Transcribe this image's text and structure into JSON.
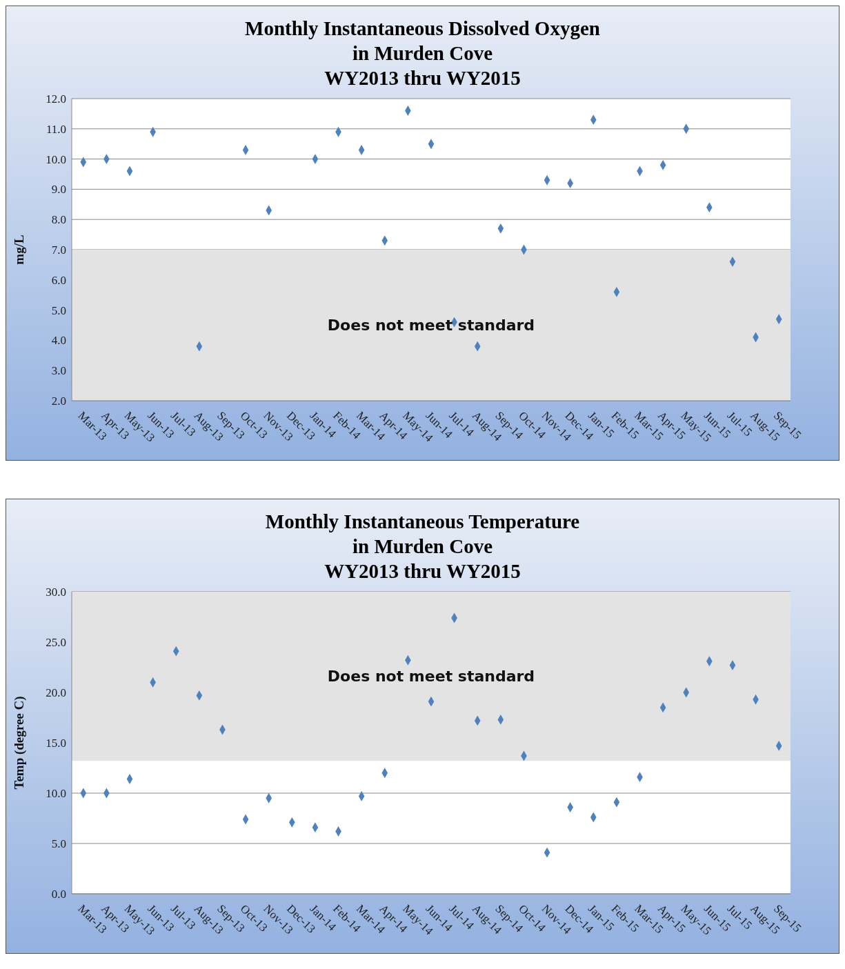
{
  "chart_data": [
    {
      "type": "scatter",
      "title": "Monthly Instantaneous Dissolved Oxygen\nin Murden Cove\nWY2013 thru WY2015",
      "ylabel": "mg/L",
      "categories": [
        "Mar-13",
        "Apr-13",
        "May-13",
        "Jun-13",
        "Jul-13",
        "Aug-13",
        "Sep-13",
        "Oct-13",
        "Nov-13",
        "Dec-13",
        "Jan-14",
        "Feb-14",
        "Mar-14",
        "Apr-14",
        "May-14",
        "Jun-14",
        "Jul-14",
        "Aug-14",
        "Sep-14",
        "Oct-14",
        "Nov-14",
        "Dec-14",
        "Jan-15",
        "Feb-15",
        "Mar-15",
        "Apr-15",
        "May-15",
        "Jun-15",
        "Jul-15",
        "Aug-15",
        "Sep-15"
      ],
      "series": [
        {
          "color": "#4f81bd",
          "values": [
            9.9,
            10.0,
            9.6,
            10.9,
            null,
            3.8,
            null,
            10.3,
            8.3,
            null,
            10.0,
            10.9,
            10.3,
            7.3,
            11.6,
            10.5,
            4.6,
            3.8,
            7.7,
            7.0,
            9.3,
            9.2,
            11.3,
            5.6,
            9.6,
            9.8,
            11.0,
            8.4,
            6.6,
            4.1,
            4.7
          ]
        }
      ],
      "ylim": [
        2,
        12
      ],
      "yticks": [
        {
          "value": 2,
          "label": "2.0"
        },
        {
          "value": 3,
          "label": "3.0"
        },
        {
          "value": 4,
          "label": "4.0"
        },
        {
          "value": 5,
          "label": "5.0"
        },
        {
          "value": 6,
          "label": "6.0"
        },
        {
          "value": 7,
          "label": "7.0"
        },
        {
          "value": 8,
          "label": "8.0"
        },
        {
          "value": 9,
          "label": "9.0"
        },
        {
          "value": 10,
          "label": "10.0"
        },
        {
          "value": 11,
          "label": "11.0"
        },
        {
          "value": 12,
          "label": "12.0"
        }
      ],
      "bands": [
        {
          "axis": "y",
          "from": 2,
          "to": 7,
          "label": "Does not meet standard",
          "color": "#e3e3e3"
        }
      ],
      "grid": "y",
      "legend": false,
      "marker": "diamond"
    },
    {
      "type": "scatter",
      "title": "Monthly Instantaneous Temperature\nin Murden Cove\nWY2013 thru WY2015",
      "ylabel": "Temp (degree C)",
      "categories": [
        "Mar-13",
        "Apr-13",
        "May-13",
        "Jun-13",
        "Jul-13",
        "Aug-13",
        "Sep-13",
        "Oct-13",
        "Nov-13",
        "Dec-13",
        "Jan-14",
        "Feb-14",
        "Mar-14",
        "Apr-14",
        "May-14",
        "Jun-14",
        "Jul-14",
        "Aug-14",
        "Sep-14",
        "Oct-14",
        "Nov-14",
        "Dec-14",
        "Jan-15",
        "Feb-15",
        "Mar-15",
        "Apr-15",
        "May-15",
        "Jun-15",
        "Jul-15",
        "Aug-15",
        "Sep-15"
      ],
      "series": [
        {
          "color": "#4f81bd",
          "values": [
            10.0,
            10.0,
            11.4,
            21.0,
            24.1,
            19.7,
            16.3,
            7.4,
            9.5,
            7.1,
            6.6,
            6.2,
            9.7,
            12.0,
            23.2,
            19.1,
            27.4,
            17.2,
            17.3,
            13.7,
            4.1,
            8.6,
            7.6,
            9.1,
            11.6,
            18.5,
            20.0,
            23.1,
            22.7,
            19.3,
            14.7
          ]
        }
      ],
      "ylim": [
        0,
        30
      ],
      "yticks": [
        {
          "value": 0,
          "label": "0.0"
        },
        {
          "value": 5,
          "label": "5.0"
        },
        {
          "value": 10,
          "label": "10.0"
        },
        {
          "value": 15,
          "label": "15.0"
        },
        {
          "value": 20,
          "label": "20.0"
        },
        {
          "value": 25,
          "label": "25.0"
        },
        {
          "value": 30,
          "label": "30.0"
        }
      ],
      "bands": [
        {
          "axis": "y",
          "from": 13.2,
          "to": 30,
          "label": "Does not meet standard",
          "color": "#e3e3e3"
        }
      ],
      "grid": "y",
      "legend": false,
      "marker": "diamond"
    }
  ]
}
